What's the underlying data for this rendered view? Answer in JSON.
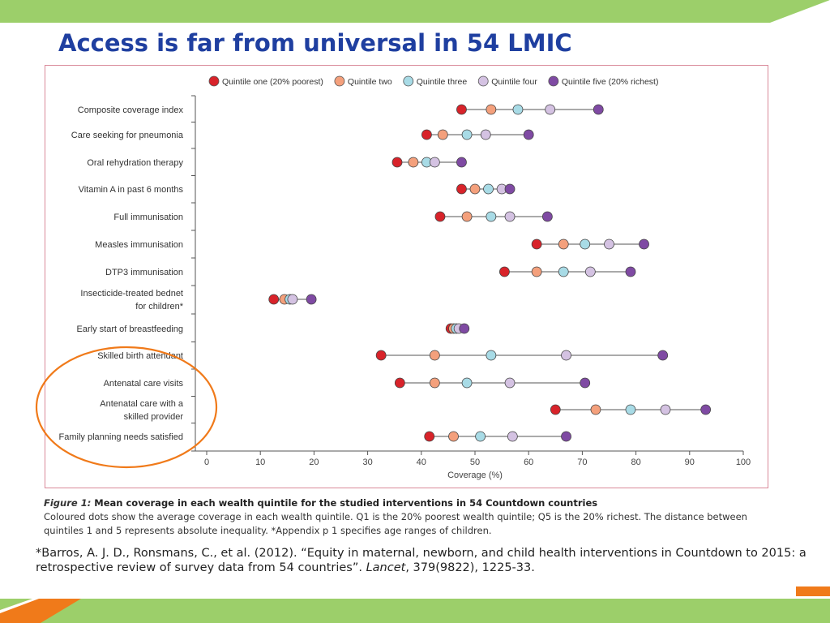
{
  "slide": {
    "title": "Access is far from universal in 54 LMIC",
    "colors": {
      "title": "#1f3fa0",
      "green_band": "#9ccf6a",
      "orange_accent": "#f07a1a",
      "highlight_circle": "#f07a1a",
      "frame": "#d98a9a"
    }
  },
  "chart_data": {
    "type": "scatter",
    "title": "",
    "xlabel": "Coverage (%)",
    "ylabel": "",
    "xlim": [
      0,
      100
    ],
    "x_ticks": [
      "0",
      "10",
      "20",
      "30",
      "40",
      "50",
      "60",
      "70",
      "80",
      "90",
      "100"
    ],
    "legend_position": "top",
    "grid": false,
    "categories": [
      "Composite coverage index",
      "Care seeking for pneumonia",
      "Oral rehydration therapy",
      "Vitamin A in past 6 months",
      "Full immunisation",
      "Measles immunisation",
      "DTP3 immunisation",
      "Insecticide-treated bednet\nfor children*",
      "Early start of breastfeeding",
      "Skilled birth attendant",
      "Antenatal care visits",
      "Antenatal care with a\nskilled provider",
      "Family planning needs satisfied"
    ],
    "series": [
      {
        "name": "Quintile one (20% poorest)",
        "color": "#d8232a",
        "values": [
          47.5,
          41,
          35.5,
          47.5,
          43.5,
          61.5,
          55.5,
          12.5,
          45.5,
          32.5,
          36,
          65,
          41.5
        ]
      },
      {
        "name": "Quintile two",
        "color": "#f4a07c",
        "values": [
          53,
          44,
          38.5,
          50,
          48.5,
          66.5,
          61.5,
          14.5,
          46,
          42.5,
          42.5,
          72.5,
          46
        ]
      },
      {
        "name": "Quintile three",
        "color": "#a8dbe6",
        "values": [
          58,
          48.5,
          41,
          52.5,
          53,
          70.5,
          66.5,
          15.5,
          46.5,
          53,
          48.5,
          79,
          51
        ]
      },
      {
        "name": "Quintile four",
        "color": "#d4c2e2",
        "values": [
          64,
          52,
          42.5,
          55,
          56.5,
          75,
          71.5,
          16,
          47,
          67,
          56.5,
          85.5,
          57
        ]
      },
      {
        "name": "Quintile five (20% richest)",
        "color": "#7f4aa3",
        "values": [
          73,
          60,
          47.5,
          56.5,
          63.5,
          81.5,
          79,
          19.5,
          48,
          85,
          70.5,
          93,
          67
        ]
      }
    ]
  },
  "caption": {
    "label": "Figure 1:",
    "title": " Mean coverage in each wealth quintile for the studied interventions in 54 Countdown countries",
    "body": "Coloured dots show the average coverage in each wealth quintile. Q1 is the 20% poorest wealth quintile; Q5 is the 20% richest. The distance between quintiles 1 and 5 represents absolute inequality. *Appendix p 1 specifies age ranges of children."
  },
  "citation": {
    "prefix": "*Barros, A. J. D., Ronsmans, C., et al. (2012).  “Equity in maternal, newborn, and child health interventions in Countdown to 2015: a retrospective review of survey data from 54 countries”. ",
    "journal": "Lancet",
    "suffix": ", 379(9822), 1225-33."
  }
}
